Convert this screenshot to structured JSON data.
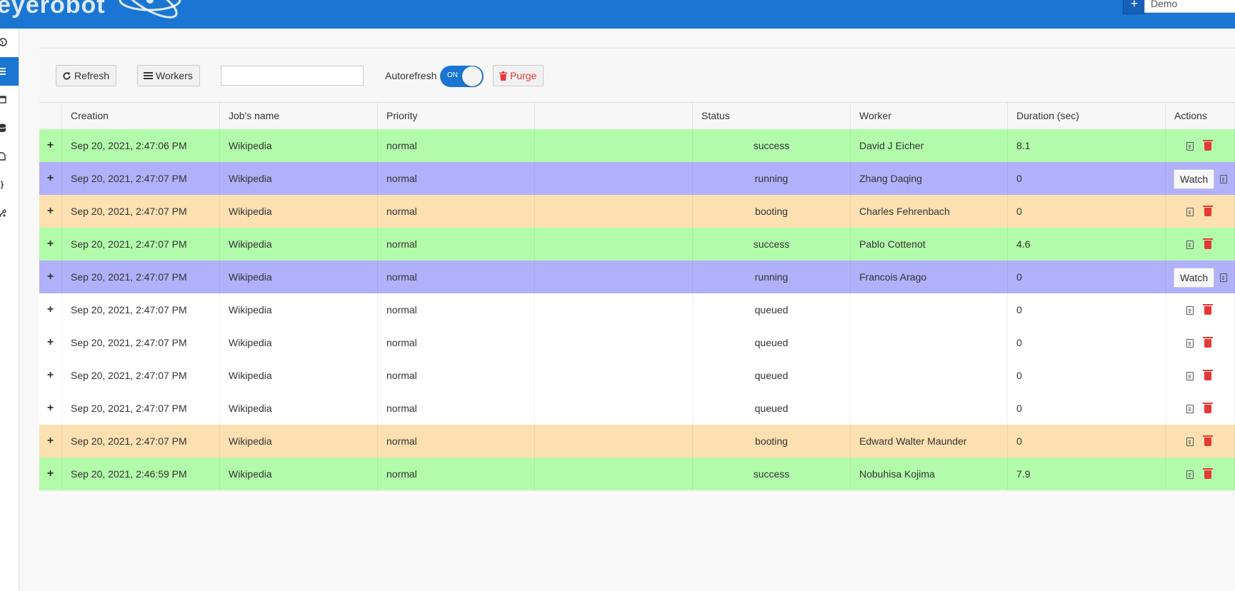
{
  "header": {
    "logo_text": "eyerobot",
    "add_button": "+",
    "project_select": "Demo"
  },
  "toolbar": {
    "refresh_label": "Refresh",
    "workers_label": "Workers",
    "search_value": "",
    "autorefresh_label": "Autorefresh",
    "autorefresh_state": "ON",
    "purge_label": "Purge"
  },
  "table": {
    "columns": [
      "",
      "Creation",
      "Job's name",
      "Priority",
      "",
      "Status",
      "Worker",
      "Duration (sec)",
      "Actions"
    ],
    "watch_label": "Watch",
    "rows": [
      {
        "expand": "+",
        "creation": "Sep 20, 2021, 2:47:06 PM",
        "name": "Wikipedia",
        "priority": "normal",
        "extra": "",
        "status": "success",
        "worker": "David J Eicher",
        "duration": "8.1"
      },
      {
        "expand": "+",
        "creation": "Sep 20, 2021, 2:47:07 PM",
        "name": "Wikipedia",
        "priority": "normal",
        "extra": "",
        "status": "running",
        "worker": "Zhang Daqing",
        "duration": "0"
      },
      {
        "expand": "+",
        "creation": "Sep 20, 2021, 2:47:07 PM",
        "name": "Wikipedia",
        "priority": "normal",
        "extra": "",
        "status": "booting",
        "worker": "Charles Fehrenbach",
        "duration": "0"
      },
      {
        "expand": "+",
        "creation": "Sep 20, 2021, 2:47:07 PM",
        "name": "Wikipedia",
        "priority": "normal",
        "extra": "",
        "status": "success",
        "worker": "Pablo Cottenot",
        "duration": "4.6"
      },
      {
        "expand": "+",
        "creation": "Sep 20, 2021, 2:47:07 PM",
        "name": "Wikipedia",
        "priority": "normal",
        "extra": "",
        "status": "running",
        "worker": "Francois Arago",
        "duration": "0"
      },
      {
        "expand": "+",
        "creation": "Sep 20, 2021, 2:47:07 PM",
        "name": "Wikipedia",
        "priority": "normal",
        "extra": "",
        "status": "queued",
        "worker": "",
        "duration": "0"
      },
      {
        "expand": "+",
        "creation": "Sep 20, 2021, 2:47:07 PM",
        "name": "Wikipedia",
        "priority": "normal",
        "extra": "",
        "status": "queued",
        "worker": "",
        "duration": "0"
      },
      {
        "expand": "+",
        "creation": "Sep 20, 2021, 2:47:07 PM",
        "name": "Wikipedia",
        "priority": "normal",
        "extra": "",
        "status": "queued",
        "worker": "",
        "duration": "0"
      },
      {
        "expand": "+",
        "creation": "Sep 20, 2021, 2:47:07 PM",
        "name": "Wikipedia",
        "priority": "normal",
        "extra": "",
        "status": "queued",
        "worker": "",
        "duration": "0"
      },
      {
        "expand": "+",
        "creation": "Sep 20, 2021, 2:47:07 PM",
        "name": "Wikipedia",
        "priority": "normal",
        "extra": "",
        "status": "booting",
        "worker": "Edward Walter Maunder",
        "duration": "0"
      },
      {
        "expand": "+",
        "creation": "Sep 20, 2021, 2:46:59 PM",
        "name": "Wikipedia",
        "priority": "normal",
        "extra": "",
        "status": "success",
        "worker": "Nobuhisa Kojima",
        "duration": "7.9"
      }
    ]
  },
  "status_colors": {
    "success": "#b2fbaa",
    "running": "#b1b0fa",
    "booting": "#fde0b1",
    "queued": "#ffffff"
  },
  "icons": {
    "sidebar": [
      "globe-icon",
      "list-icon",
      "calendar-icon",
      "database-icon",
      "file-icon",
      "code-icon",
      "share-icon"
    ],
    "actions": [
      "log-icon",
      "trash-icon"
    ]
  },
  "colors": {
    "accent": "#1a76d2",
    "danger": "#e53935"
  }
}
